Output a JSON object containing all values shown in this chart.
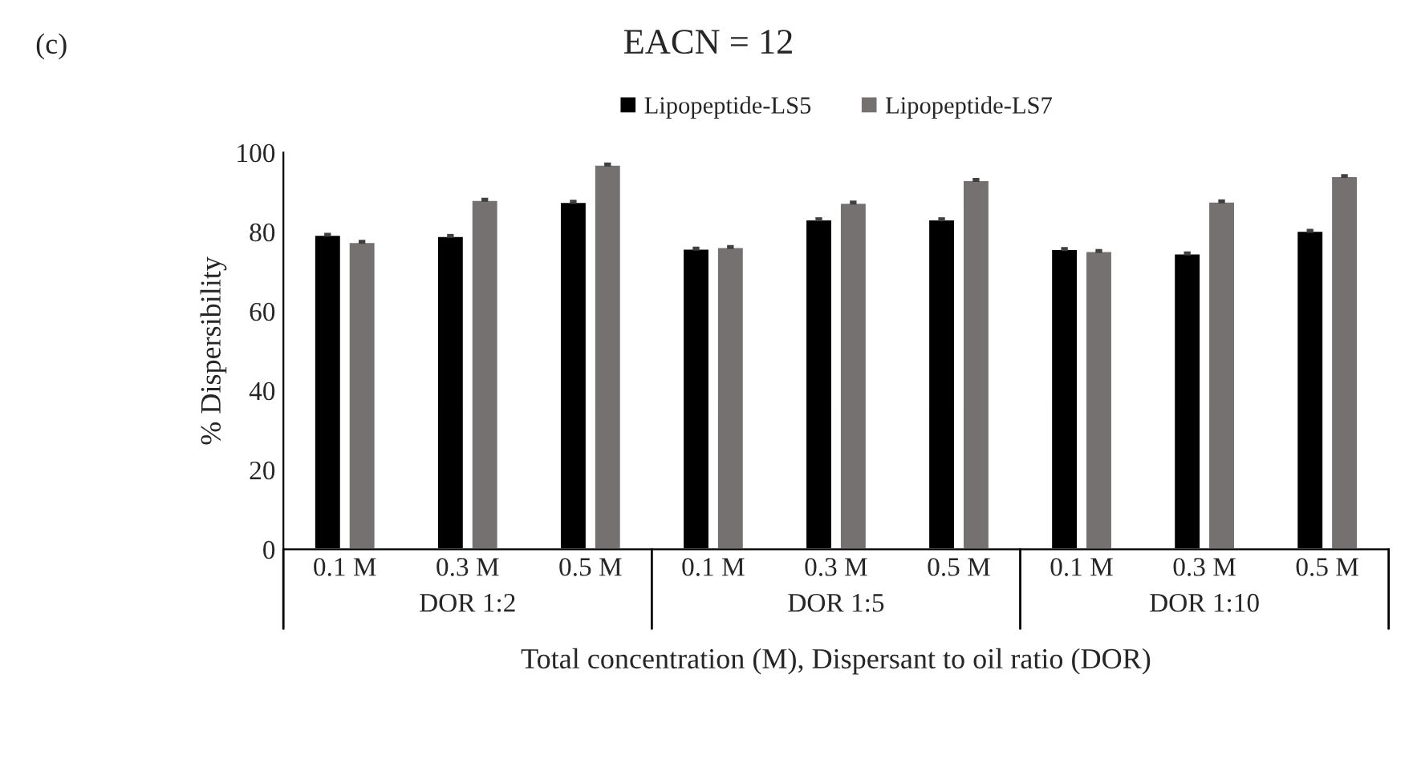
{
  "chart_data": {
    "type": "bar",
    "title": "EACN = 12",
    "ylabel": "% Dispersibility",
    "xlabel": "Total concentration (M), Dispersant to oil ratio (DOR)",
    "categories": [
      "0.1 M",
      "0.3 M",
      "0.5 M",
      "0.1 M",
      "0.3 M",
      "0.5 M",
      "0.1 M",
      "0.3 M",
      "0.5 M"
    ],
    "annotations": [
      "(c)",
      "DOR 1:2",
      "DOR 1:5",
      "DOR 1:10"
    ],
    "series": [
      {
        "name": "Lipopeptide-LS5",
        "color": "#000000",
        "values": [
          79.3,
          79,
          87.6,
          75.8,
          83.2,
          83.2,
          75.7,
          74.6,
          80.3
        ],
        "errors": [
          0.5,
          0.5,
          0.5,
          0.5,
          0.5,
          0.5,
          0.5,
          0.5,
          0.5
        ]
      },
      {
        "name": "Lipopeptide-LS7",
        "color": "#767171",
        "values": [
          77.5,
          88.1,
          97,
          76.2,
          87.4,
          93.1,
          75.2,
          87.7,
          94.1
        ],
        "errors": [
          0.5,
          0.5,
          0.5,
          0.5,
          0.5,
          0.5,
          0.5,
          0.5,
          0.5
        ]
      }
    ],
    "ylim": [
      0,
      100
    ],
    "yticks": [
      0,
      20,
      40,
      60,
      80,
      100
    ],
    "grid": false,
    "legend": "top"
  }
}
